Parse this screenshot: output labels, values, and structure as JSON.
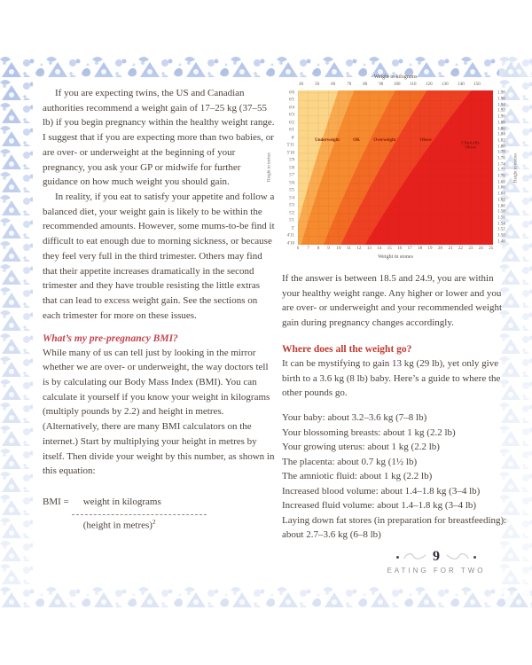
{
  "theme": {
    "text_color": "#4a423c",
    "accent_heading": "#c4454e",
    "accent_heading2": "#c13b31",
    "border_blue": "#a9bde6"
  },
  "page": {
    "left_column": {
      "para1": "If you are expecting twins, the US and Canadian authorities recommend a weight gain of 17–25 kg (37–55 lb) if you begin pregnancy within the healthy weight range. I suggest that if you are expecting more than two babies, or are over- or underweight at the beginning of your pregnancy, you ask your GP or midwife for further guidance on how much weight you should gain.",
      "para2": "In reality, if you eat to satisfy your appetite and follow a balanced diet, your weight gain is likely to be within the recommended amounts. However, some mums-to-be find it difficult to eat enough due to morning sickness, or because they feel very full in the third trimester. Others may find that their appetite increases dramatically in the second trimester and they have trouble resisting the little extras that can lead to excess weight gain. See the sections on each trimester for more on these issues.",
      "bmi_heading": "What’s my pre-pregnancy BMI?",
      "bmi_para": "While many of us can tell just by looking in the mirror whether we are over- or underweight, the way doctors tell is by calculating our Body Mass Index (BMI). You can calculate it yourself if you know your weight in kilograms (multiply pounds by 2.2) and height in metres. (Alternatively, there are many BMI calculators on the internet.) Start by multiplying your height in metres by itself. Then divide your weight by this number, as shown in this equation:",
      "equation": {
        "lhs": "BMI =",
        "numerator": "weight in kilograms",
        "denominator": "(height in metres)",
        "exponent": "2"
      }
    },
    "right_column": {
      "answer_para": "If the answer is between 18.5 and 24.9, you are within your healthy weight range. Any higher or lower and you are over- or underweight and your recommended weight gain during pregnancy changes accordingly.",
      "weight_heading": "Where does all the weight go?",
      "weight_intro": "It can be mystifying to gain 13 kg (29 lb), yet only give birth to a 3.6 kg (8 lb) baby. Here’s a guide to where the other pounds go.",
      "weight_list": [
        "Your baby: about 3.2–3.6 kg (7–8 lb)",
        "Your blossoming breasts: about 1 kg (2.2 lb)",
        "Your growing uterus: about 1 kg (2.2 lb)",
        "The placenta: about 0.7 kg (1½ lb)",
        "The amniotic fluid: about 1 kg (2.2 lb)",
        "Increased blood volume: about 1.4–1.8 kg (3–4 lb)",
        "Increased fluid volume: about 1.4–1.8 kg (3–4 lb)",
        "Laying down fat stores (in preparation for breastfeeding): about 2.7–3.6 kg (6–8 lb)"
      ]
    },
    "footer": {
      "page_number": "9",
      "chapter": "EATING FOR TWO"
    }
  },
  "chart_data": {
    "type": "heatmap",
    "description": "BMI chart of weight against height divided into BMI category zones",
    "title_top": "Weight in kilograms",
    "xlabel_bottom": "Weight in stones",
    "ylabel_left": "Height in inches",
    "ylabel_right": "Height in metres",
    "kg_ticks": [
      40,
      50,
      60,
      70,
      80,
      90,
      100,
      110,
      120,
      130,
      140,
      150
    ],
    "stone_ticks": [
      6,
      7,
      8,
      9,
      10,
      11,
      12,
      13,
      14,
      15,
      16,
      17,
      18,
      19,
      20,
      21,
      22,
      23,
      24,
      25
    ],
    "height_ticks_imperial": [
      "6'6",
      "6'5",
      "6'4",
      "6'3",
      "6'2",
      "6'1",
      "6'",
      "5'11",
      "5'10",
      "5'9",
      "5'8",
      "5'7",
      "5'6",
      "5'5",
      "5'4",
      "5'3",
      "5'2",
      "5'1",
      "5'",
      "4'11",
      "4'10"
    ],
    "height_ticks_metres": [
      "1.98",
      "1.96",
      "1.94",
      "1.92",
      "1.90",
      "1.88",
      "1.86",
      "1.84",
      "1.82",
      "1.80",
      "1.78",
      "1.76",
      "1.74",
      "1.72",
      "1.70",
      "1.68",
      "1.66",
      "1.64",
      "1.62",
      "1.60",
      "1.58",
      "1.56",
      "1.54",
      "1.52",
      "1.50",
      "1.48"
    ],
    "kg_range": [
      38,
      160
    ],
    "height_range_m": [
      1.47,
      1.99
    ],
    "zones": [
      {
        "label": "",
        "bmi_max": 16,
        "color": "#FBD688"
      },
      {
        "label": "Underweight",
        "bmi_max": 18.5,
        "color": "#F9A94E"
      },
      {
        "label": "OK",
        "bmi_max": 25,
        "color": "#F68A2F"
      },
      {
        "label": "Overweight",
        "bmi_max": 30,
        "color": "#F26A24"
      },
      {
        "label": "Obese",
        "bmi_max": 37,
        "color": "#EE4023"
      },
      {
        "label": "Clinically Obese",
        "bmi_max": null,
        "color": "#E6211D"
      }
    ],
    "zone_label_color": "#8a1708",
    "grid": true
  }
}
